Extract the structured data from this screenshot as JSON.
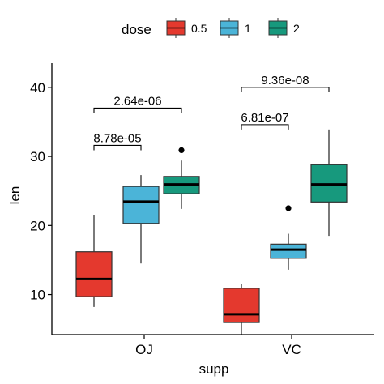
{
  "chart_data": {
    "type": "boxplot",
    "xlabel": "supp",
    "ylabel": "len",
    "ylim": [
      4.2,
      43.5
    ],
    "y_ticks": [
      10,
      20,
      30,
      40
    ],
    "categories": [
      "OJ",
      "VC"
    ],
    "legend": {
      "title": "dose",
      "placement": "top",
      "entries": [
        {
          "name": "0.5",
          "color": "#E4392E"
        },
        {
          "name": "1",
          "color": "#4BB4D8"
        },
        {
          "name": "2",
          "color": "#17997D"
        }
      ]
    },
    "series": [
      {
        "name": "0.5",
        "color": "#E4392E",
        "boxes": [
          {
            "category": "OJ",
            "whisker_low": 8.2,
            "q1": 9.7,
            "median": 12.25,
            "q3": 16.2,
            "whisker_high": 21.5,
            "outliers": []
          },
          {
            "category": "VC",
            "whisker_low": 4.2,
            "q1": 5.95,
            "median": 7.15,
            "q3": 10.9,
            "whisker_high": 11.5,
            "outliers": []
          }
        ]
      },
      {
        "name": "1",
        "color": "#4BB4D8",
        "boxes": [
          {
            "category": "OJ",
            "whisker_low": 14.5,
            "q1": 20.3,
            "median": 23.45,
            "q3": 25.65,
            "whisker_high": 27.3,
            "outliers": []
          },
          {
            "category": "VC",
            "whisker_low": 13.6,
            "q1": 15.25,
            "median": 16.5,
            "q3": 17.3,
            "whisker_high": 18.8,
            "outliers": [
              22.5
            ]
          }
        ]
      },
      {
        "name": "2",
        "color": "#17997D",
        "boxes": [
          {
            "category": "OJ",
            "whisker_low": 22.4,
            "q1": 24.6,
            "median": 25.95,
            "q3": 27.1,
            "whisker_high": 29.4,
            "outliers": [
              30.9
            ]
          },
          {
            "category": "VC",
            "whisker_low": 18.5,
            "q1": 23.4,
            "median": 25.95,
            "q3": 28.8,
            "whisker_high": 33.9,
            "outliers": []
          }
        ]
      }
    ],
    "comparisons": [
      {
        "category": "OJ",
        "from": "0.5",
        "to": "1",
        "label": "8.78e-05",
        "y": 31.6
      },
      {
        "category": "OJ",
        "from": "0.5",
        "to": "2",
        "label": "2.64e-06",
        "y": 37.0
      },
      {
        "category": "VC",
        "from": "0.5",
        "to": "1",
        "label": "6.81e-07",
        "y": 34.6
      },
      {
        "category": "VC",
        "from": "0.5",
        "to": "2",
        "label": "9.36e-08",
        "y": 40.0
      }
    ]
  }
}
